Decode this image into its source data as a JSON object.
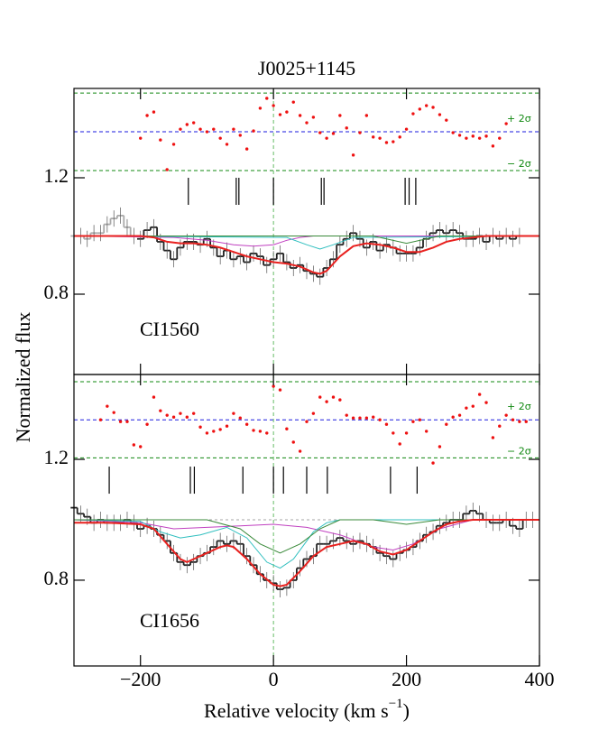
{
  "chart_data": [
    {
      "type": "line",
      "title": "J0025+1145",
      "y_label": "Normalized flux",
      "panel_label": "CI1560",
      "xlim": [
        -300,
        400
      ],
      "xticks": [
        {
          "value": -200,
          "label": "−200"
        },
        0,
        200,
        400
      ],
      "show_xtick_labels": false,
      "ylim": [
        0.524,
        1.507
      ],
      "yticks": [
        0.8,
        1.2
      ],
      "continuum": 1.0,
      "velocity_zero": 0,
      "spectrum_masked": {
        "color": "#aaaaaa",
        "x": [
          -300,
          -290,
          -280,
          -270,
          -260,
          -250,
          -240,
          -230,
          -220,
          -210
        ],
        "values": [
          1.0,
          1.0,
          0.99,
          1.01,
          1.01,
          1.04,
          1.06,
          1.07,
          1.03,
          1.0
        ]
      },
      "spectrum": {
        "color": "#222222",
        "x": [
          -200,
          -190,
          -180,
          -170,
          -160,
          -150,
          -140,
          -130,
          -120,
          -110,
          -100,
          -90,
          -80,
          -70,
          -60,
          -50,
          -40,
          -30,
          -20,
          -10,
          0,
          10,
          20,
          30,
          40,
          50,
          60,
          70,
          80,
          90,
          100,
          110,
          120,
          130,
          140,
          150,
          160,
          170,
          180,
          190,
          200,
          210,
          220,
          230,
          240,
          250,
          260,
          270,
          280,
          290,
          300,
          310,
          320,
          330,
          340,
          350,
          360,
          370
        ],
        "values": [
          0.99,
          1.02,
          1.03,
          0.98,
          0.95,
          0.92,
          0.96,
          0.98,
          0.98,
          0.97,
          0.99,
          0.96,
          0.93,
          0.95,
          0.92,
          0.93,
          0.91,
          0.94,
          0.93,
          0.9,
          0.92,
          0.94,
          0.91,
          0.89,
          0.9,
          0.88,
          0.87,
          0.86,
          0.89,
          0.92,
          0.97,
          0.99,
          1.01,
          0.99,
          0.96,
          0.98,
          0.95,
          0.97,
          0.96,
          0.94,
          0.94,
          0.94,
          0.96,
          0.99,
          1.01,
          1.02,
          1.01,
          1.02,
          1.01,
          0.99,
          0.99,
          1.0,
          0.98,
          1.0,
          0.99,
          1.0,
          0.99,
          1.0
        ]
      },
      "models": [
        {
          "color": "#c040c0",
          "x": [
            -300,
            -150,
            -100,
            -60,
            -30,
            0,
            20,
            40,
            60,
            400
          ],
          "values": [
            1.0,
            0.995,
            0.985,
            0.97,
            0.965,
            0.97,
            0.985,
            0.995,
            1.0,
            1.0
          ]
        },
        {
          "color": "#30bfbf",
          "x": [
            -300,
            20,
            50,
            70,
            90,
            120,
            400
          ],
          "values": [
            1.0,
            0.995,
            0.97,
            0.955,
            0.97,
            0.995,
            1.0
          ]
        },
        {
          "color": "#3a8a3a",
          "x": [
            -300,
            150,
            200,
            250,
            400
          ],
          "values": [
            1.0,
            1.0,
            0.975,
            1.0,
            1.0
          ]
        },
        {
          "color": "#e8211f",
          "x": [
            -300,
            -200,
            -180,
            -160,
            -140,
            -120,
            -100,
            -80,
            -60,
            -40,
            -20,
            0,
            20,
            40,
            60,
            70,
            80,
            100,
            120,
            140,
            160,
            180,
            200,
            220,
            240,
            260,
            280,
            300,
            320,
            400
          ],
          "values": [
            1.0,
            1.0,
            0.995,
            0.98,
            0.975,
            0.975,
            0.97,
            0.96,
            0.945,
            0.93,
            0.92,
            0.91,
            0.905,
            0.895,
            0.875,
            0.87,
            0.88,
            0.93,
            0.965,
            0.975,
            0.97,
            0.96,
            0.945,
            0.945,
            0.96,
            0.98,
            0.99,
            0.995,
            1.0,
            1.0
          ]
        }
      ],
      "components": [
        -128,
        -56,
        -52,
        0,
        72,
        76,
        198,
        204,
        214
      ],
      "residuals": {
        "color": "#ee1111",
        "x": [
          -200,
          -190,
          -180,
          -170,
          -160,
          -150,
          -140,
          -130,
          -120,
          -110,
          -100,
          -90,
          -80,
          -70,
          -60,
          -50,
          -40,
          -30,
          -20,
          -10,
          0,
          10,
          20,
          30,
          40,
          50,
          60,
          70,
          80,
          90,
          100,
          110,
          120,
          130,
          140,
          150,
          160,
          170,
          180,
          190,
          200,
          210,
          220,
          230,
          240,
          250,
          260,
          270,
          280,
          290,
          300,
          310,
          320,
          330,
          340,
          350
        ],
        "values": [
          1.336,
          1.414,
          1.426,
          1.33,
          1.228,
          1.315,
          1.367,
          1.383,
          1.389,
          1.367,
          1.358,
          1.367,
          1.336,
          1.315,
          1.367,
          1.346,
          1.299,
          1.361,
          1.439,
          1.473,
          1.448,
          1.417,
          1.426,
          1.46,
          1.414,
          1.389,
          1.408,
          1.355,
          1.336,
          1.352,
          1.414,
          1.371,
          1.278,
          1.355,
          1.414,
          1.34,
          1.336,
          1.321,
          1.324,
          1.34,
          1.367,
          1.42,
          1.436,
          1.448,
          1.442,
          1.417,
          1.398,
          1.355,
          1.346,
          1.336,
          1.343,
          1.336,
          1.343,
          1.309,
          1.336,
          1.386
        ]
      },
      "residual_levels": [
        {
          "value": 1.358,
          "color": "#1a1adf"
        },
        {
          "value": 1.491,
          "color": "#118811",
          "label": "+ 2σ"
        },
        {
          "value": 1.225,
          "color": "#118811",
          "label": "− 2σ"
        }
      ]
    },
    {
      "type": "line",
      "panel_label": "CI1656",
      "x_label": "Relative velocity (km s",
      "x_label_sup": "−1",
      "x_label_end": ")",
      "xlim": [
        -300,
        400
      ],
      "xticks": [
        {
          "value": -200,
          "label": "−200"
        },
        0,
        200,
        400
      ],
      "show_xtick_labels": true,
      "ylim": [
        0.516,
        1.481
      ],
      "yticks": [
        0.8,
        1.2
      ],
      "continuum": 1.0,
      "velocity_zero": 0,
      "spectrum": {
        "color": "#222222",
        "x": [
          -300,
          -290,
          -280,
          -270,
          -260,
          -250,
          -240,
          -230,
          -220,
          -210,
          -200,
          -190,
          -180,
          -170,
          -160,
          -150,
          -140,
          -130,
          -120,
          -110,
          -100,
          -90,
          -80,
          -70,
          -60,
          -50,
          -40,
          -30,
          -20,
          -10,
          0,
          10,
          20,
          30,
          40,
          50,
          60,
          70,
          80,
          90,
          100,
          110,
          120,
          130,
          140,
          150,
          160,
          170,
          180,
          190,
          200,
          210,
          220,
          230,
          240,
          250,
          260,
          270,
          280,
          290,
          300,
          310,
          320,
          330,
          340,
          350,
          360,
          370,
          380,
          390
        ],
        "values": [
          1.04,
          1.02,
          1.01,
          0.99,
          1.0,
          0.99,
          0.99,
          0.99,
          1.0,
          0.99,
          0.97,
          0.98,
          0.97,
          0.95,
          0.93,
          0.89,
          0.86,
          0.85,
          0.86,
          0.88,
          0.89,
          0.91,
          0.93,
          0.92,
          0.93,
          0.92,
          0.88,
          0.85,
          0.82,
          0.8,
          0.79,
          0.77,
          0.775,
          0.8,
          0.84,
          0.87,
          0.88,
          0.92,
          0.92,
          0.93,
          0.94,
          0.93,
          0.92,
          0.93,
          0.92,
          0.91,
          0.89,
          0.88,
          0.87,
          0.89,
          0.9,
          0.91,
          0.93,
          0.95,
          0.96,
          0.98,
          0.99,
          1.0,
          1.0,
          1.02,
          1.03,
          1.02,
          1.0,
          0.99,
          0.99,
          1.0,
          0.98,
          0.97,
          1.0,
          1.0
        ]
      },
      "models": [
        {
          "color": "#c040c0",
          "x": [
            -300,
            -200,
            -150,
            -100,
            -50,
            0,
            50,
            100,
            150,
            180,
            210,
            250,
            300,
            400
          ],
          "values": [
            1.0,
            0.99,
            0.97,
            0.975,
            0.98,
            0.985,
            0.975,
            0.95,
            0.91,
            0.9,
            0.92,
            0.97,
            1.0,
            1.0
          ]
        },
        {
          "color": "#30bfbf",
          "x": [
            -300,
            -200,
            -170,
            -140,
            -110,
            -70,
            -40,
            -10,
            10,
            30,
            60,
            80,
            100,
            400
          ],
          "values": [
            1.0,
            0.995,
            0.96,
            0.94,
            0.95,
            0.975,
            0.94,
            0.86,
            0.84,
            0.87,
            0.96,
            0.99,
            1.0,
            1.0
          ]
        },
        {
          "color": "#3a8a3a",
          "x": [
            -300,
            -100,
            -50,
            -20,
            10,
            40,
            70,
            100,
            150,
            200,
            250,
            400
          ],
          "values": [
            1.0,
            1.0,
            0.97,
            0.92,
            0.89,
            0.92,
            0.97,
            1.0,
            1.0,
            0.985,
            1.0,
            1.0
          ]
        },
        {
          "color": "#e8211f",
          "x": [
            -300,
            -250,
            -200,
            -180,
            -160,
            -140,
            -130,
            -120,
            -100,
            -80,
            -70,
            -60,
            -40,
            -20,
            0,
            10,
            20,
            40,
            60,
            80,
            100,
            120,
            140,
            160,
            180,
            200,
            220,
            240,
            260,
            280,
            300,
            400
          ],
          "values": [
            0.99,
            0.99,
            0.985,
            0.97,
            0.92,
            0.87,
            0.86,
            0.87,
            0.89,
            0.91,
            0.915,
            0.91,
            0.87,
            0.82,
            0.785,
            0.78,
            0.785,
            0.83,
            0.88,
            0.91,
            0.92,
            0.93,
            0.92,
            0.895,
            0.885,
            0.9,
            0.93,
            0.96,
            0.985,
            0.995,
            1.0,
            1.0
          ]
        }
      ],
      "components": [
        -247,
        -125,
        -119,
        -46,
        0,
        15,
        50,
        81,
        176,
        216
      ],
      "residuals": {
        "color": "#ee1111",
        "x": [
          -260,
          -250,
          -240,
          -230,
          -220,
          -210,
          -200,
          -190,
          -180,
          -170,
          -160,
          -150,
          -140,
          -130,
          -120,
          -110,
          -100,
          -90,
          -80,
          -70,
          -60,
          -50,
          -40,
          -30,
          -20,
          -10,
          0,
          10,
          20,
          30,
          40,
          50,
          60,
          70,
          80,
          90,
          100,
          110,
          120,
          130,
          140,
          150,
          160,
          170,
          180,
          190,
          200,
          210,
          220,
          230,
          240,
          250,
          260,
          270,
          280,
          290,
          300,
          310,
          320,
          330,
          340,
          350,
          360,
          370,
          380
        ],
        "values": [
          1.331,
          1.376,
          1.355,
          1.325,
          1.325,
          1.248,
          1.242,
          1.316,
          1.406,
          1.361,
          1.346,
          1.34,
          1.352,
          1.34,
          1.352,
          1.307,
          1.287,
          1.293,
          1.299,
          1.31,
          1.352,
          1.337,
          1.316,
          1.296,
          1.293,
          1.287,
          1.442,
          1.43,
          1.301,
          1.257,
          1.227,
          1.325,
          1.352,
          1.406,
          1.391,
          1.406,
          1.397,
          1.346,
          1.337,
          1.337,
          1.337,
          1.34,
          1.331,
          1.316,
          1.287,
          1.251,
          1.287,
          1.325,
          1.331,
          1.293,
          1.188,
          1.242,
          1.316,
          1.34,
          1.346,
          1.37,
          1.376,
          1.415,
          1.388,
          1.272,
          1.31,
          1.346,
          1.331,
          1.325,
          1.325
        ]
      },
      "residual_levels": [
        {
          "value": 1.331,
          "color": "#1a1adf"
        },
        {
          "value": 1.457,
          "color": "#118811",
          "label": "+ 2σ"
        },
        {
          "value": 1.205,
          "color": "#118811",
          "label": "− 2σ"
        }
      ]
    }
  ]
}
